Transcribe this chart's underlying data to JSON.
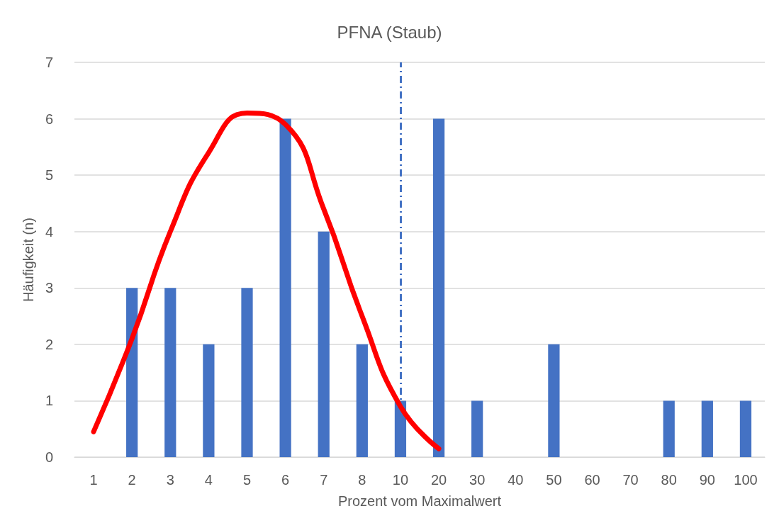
{
  "chart_data": {
    "type": "bar",
    "title": "PFNA (Staub)",
    "xlabel": "Prozent vom Maximalwert",
    "ylabel": "Häufigkeit (n)",
    "categories": [
      "1",
      "2",
      "3",
      "4",
      "5",
      "6",
      "7",
      "8",
      "10",
      "20",
      "30",
      "40",
      "50",
      "60",
      "70",
      "80",
      "90",
      "100"
    ],
    "series": [
      {
        "color": "#4472c4",
        "values": [
          0,
          3,
          3,
          2,
          3,
          6,
          4,
          2,
          1,
          6,
          1,
          0,
          2,
          0,
          0,
          1,
          1,
          1
        ]
      },
      {
        "type": "line",
        "color": "#ff0000",
        "marker": "none",
        "values": [
          0.45,
          2.1,
          4.0,
          5.4,
          6.1,
          5.9,
          4.4,
          2.5,
          0.9,
          0.15,
          null,
          null,
          null,
          null,
          null,
          null,
          null,
          null
        ]
      }
    ],
    "ylim": [
      0,
      7
    ],
    "yticks": [
      0,
      1,
      2,
      3,
      4,
      5,
      6,
      7
    ],
    "grid": "y",
    "ref_lines": [
      {
        "axis": "x",
        "value": "10",
        "color": "#4472c4",
        "line_style": "dashed"
      }
    ]
  }
}
